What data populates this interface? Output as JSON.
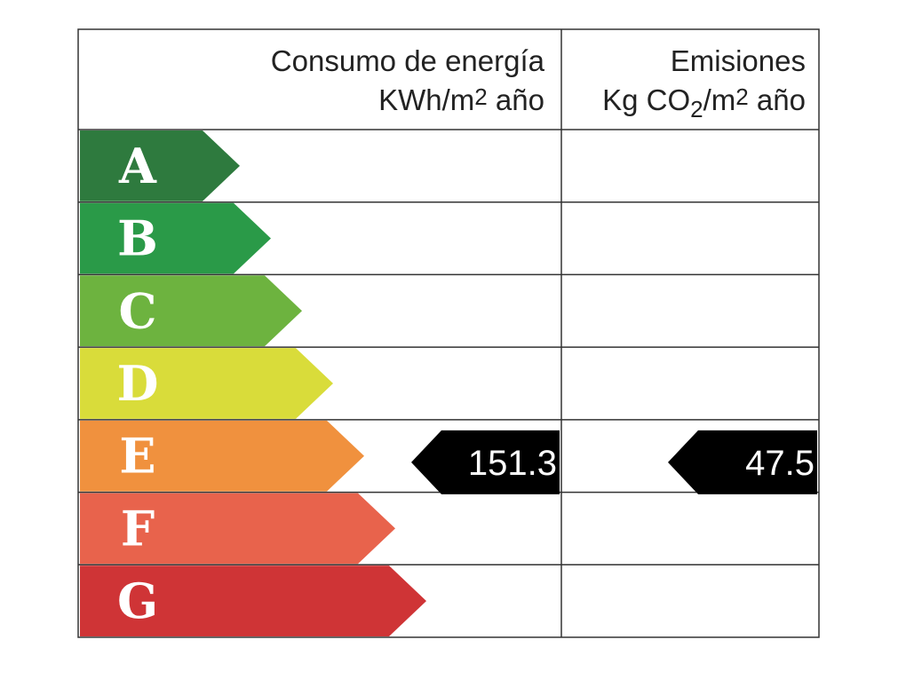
{
  "header": {
    "energy_title": "Consumo de energía",
    "energy_unit": [
      "KWh/m",
      "2",
      " año"
    ],
    "emissions_title": "Emisiones",
    "emissions_unit": [
      "Kg CO",
      "2",
      "/m",
      "2",
      " año"
    ]
  },
  "rows": [
    {
      "letter": "A",
      "color": "#2e7a3e"
    },
    {
      "letter": "B",
      "color": "#2a9a48"
    },
    {
      "letter": "C",
      "color": "#6db33f"
    },
    {
      "letter": "D",
      "color": "#d9dc3a"
    },
    {
      "letter": "E",
      "color": "#f0913e"
    },
    {
      "letter": "F",
      "color": "#e8634c"
    },
    {
      "letter": "G",
      "color": "#cf3436"
    }
  ],
  "energy": {
    "class": "E",
    "value": 151.3
  },
  "emissions": {
    "class": "E",
    "value": 47.5
  }
}
